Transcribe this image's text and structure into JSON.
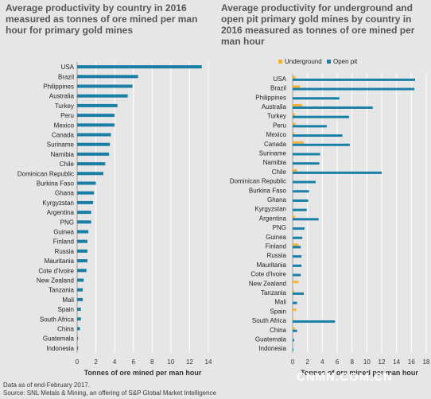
{
  "colors": {
    "open_pit": "#1a7fa6",
    "underground": "#f0b33d",
    "background": "#e6e6e6",
    "text": "#575757"
  },
  "footnotes": {
    "line1": "Data as of end-February 2017.",
    "line2": "Source: SNL Metals & Mining, an offering of S&P Global Market Intelligence"
  },
  "watermark": "CNMN.COM.CN",
  "chart_data": [
    {
      "type": "bar",
      "orientation": "horizontal",
      "title": "Average productivity by country in 2016 measured as tonnes of ore mined per man hour for primary gold mines",
      "xlabel": "Tonnes of ore mined per man hour",
      "xlim": [
        0,
        14
      ],
      "xticks": [
        0,
        2,
        4,
        6,
        8,
        10,
        12,
        14
      ],
      "grid": true,
      "categories": [
        "USA",
        "Brazil",
        "Philippines",
        "Australia",
        "Turkey",
        "Peru",
        "Mexico",
        "Canada",
        "Suriname",
        "Namibia",
        "Chile",
        "Dominican Republic",
        "Burkina Faso",
        "Ghana",
        "Kyrgyzstan",
        "Argentina",
        "PNG",
        "Guinea",
        "Finland",
        "Russia",
        "Mauritania",
        "Cote d'Ivoire",
        "New Zealand",
        "Tanzania",
        "Mali",
        "Spain",
        "South Africa",
        "China",
        "Guatemala",
        "Indonesia"
      ],
      "values": [
        13.3,
        6.5,
        5.9,
        5.4,
        4.3,
        4.0,
        4.0,
        3.6,
        3.5,
        3.4,
        3.0,
        2.8,
        2.0,
        1.8,
        1.7,
        1.5,
        1.5,
        1.2,
        1.1,
        1.1,
        1.1,
        1.0,
        0.7,
        0.6,
        0.6,
        0.4,
        0.4,
        0.3,
        0.1,
        0.1
      ]
    },
    {
      "type": "bar",
      "orientation": "horizontal",
      "title": "Average productivity for underground and open pit primary gold mines by country in 2016 measured as tonnes of ore mined per man hour",
      "xlabel": "Tonnes of ore mined per man hour",
      "xlim": [
        0,
        18
      ],
      "xticks": [
        0,
        2,
        4,
        6,
        8,
        10,
        12,
        14,
        16,
        18
      ],
      "grid": true,
      "legend_position": "top-left",
      "categories": [
        "USA",
        "Brazil",
        "Philippines",
        "Australia",
        "Turkey",
        "Peru",
        "Mexico",
        "Canada",
        "Suriname",
        "Namibia",
        "Chile",
        "Dominican Republic",
        "Burkina Faso",
        "Ghana",
        "Kyrgyzstan",
        "Argentina",
        "PNG",
        "Guinea",
        "Finland",
        "Russia",
        "Mauritania",
        "Cote d'Ivoire",
        "New Zealand",
        "Tanzania",
        "Mali",
        "Spain",
        "South Africa",
        "China",
        "Guatemala",
        "Indonesia"
      ],
      "series": [
        {
          "name": "Underground",
          "color": "#f0b33d",
          "values": [
            0.4,
            1.0,
            0,
            1.3,
            0.3,
            0.4,
            0.2,
            1.5,
            0,
            0,
            0.6,
            0,
            0,
            0,
            0,
            0.3,
            0,
            0,
            0.8,
            0,
            0,
            0,
            0.8,
            0.2,
            0,
            0.5,
            0.1,
            0.3,
            0,
            0
          ]
        },
        {
          "name": "Open pit",
          "color": "#1a7fa6",
          "values": [
            16.5,
            16.4,
            6.3,
            10.8,
            7.6,
            4.6,
            6.7,
            7.7,
            3.7,
            3.6,
            12.0,
            3.1,
            2.2,
            2.1,
            1.9,
            3.5,
            1.6,
            1.3,
            1.1,
            1.2,
            1.2,
            1.1,
            0,
            1.5,
            0.6,
            0,
            5.7,
            0.6,
            0.2,
            0.1
          ]
        }
      ]
    }
  ]
}
